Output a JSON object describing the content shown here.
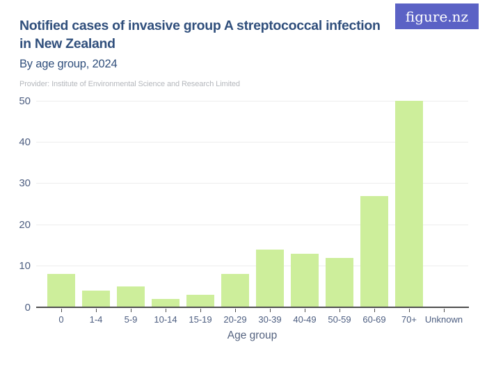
{
  "header": {
    "title_line1": "Notified cases of invasive group A streptococcal infection",
    "title_line2": "in New Zealand",
    "subtitle": "By age group, 2024",
    "provider": "Provider: Institute of Environmental Science and Research Limited",
    "title_color": "#304f7c",
    "provider_color": "#b4b7bc"
  },
  "logo": {
    "text": "figure.nz",
    "background": "#5b62c5",
    "color": "#ffffff"
  },
  "chart_data": {
    "type": "bar",
    "title": "Notified cases of invasive group A streptococcal infection in New Zealand",
    "subtitle": "By age group, 2024",
    "categories": [
      "0",
      "1-4",
      "5-9",
      "10-14",
      "15-19",
      "20-29",
      "30-39",
      "40-49",
      "50-59",
      "60-69",
      "70+",
      "Unknown"
    ],
    "values": [
      8,
      4,
      5,
      2,
      3,
      8,
      14,
      13,
      12,
      27,
      50,
      0
    ],
    "xlabel": "Age group",
    "ylabel": "",
    "ylim": [
      0,
      50
    ],
    "yticks": [
      0,
      10,
      20,
      30,
      40,
      50
    ],
    "grid": true,
    "legend": false,
    "bar_color": "#cdee9b",
    "gridline_color": "#ededed",
    "axis_color": "#4d4d4d",
    "tick_label_color": "#4c5d80",
    "xlabel_color": "#54627f"
  }
}
